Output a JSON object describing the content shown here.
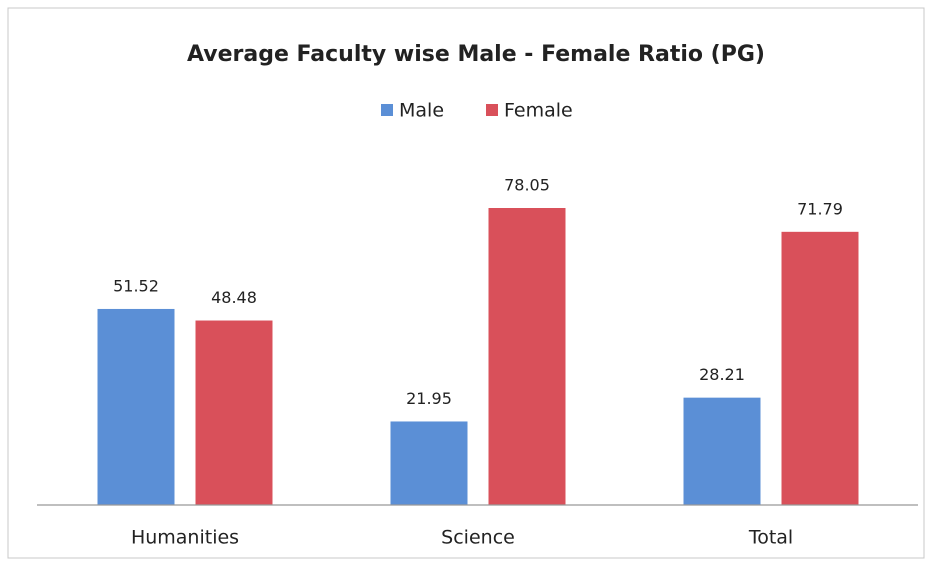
{
  "chart_data": {
    "type": "bar",
    "title": "Average Faculty wise Male - Female Ratio (PG)",
    "categories": [
      "Humanities",
      "Science",
      "Total"
    ],
    "series": [
      {
        "name": "Male",
        "color": "#5b8fd6",
        "values": [
          51.52,
          21.95,
          28.21
        ]
      },
      {
        "name": "Female",
        "color": "#d9505a",
        "values": [
          48.48,
          78.05,
          71.79
        ]
      }
    ],
    "legend": "top"
  }
}
